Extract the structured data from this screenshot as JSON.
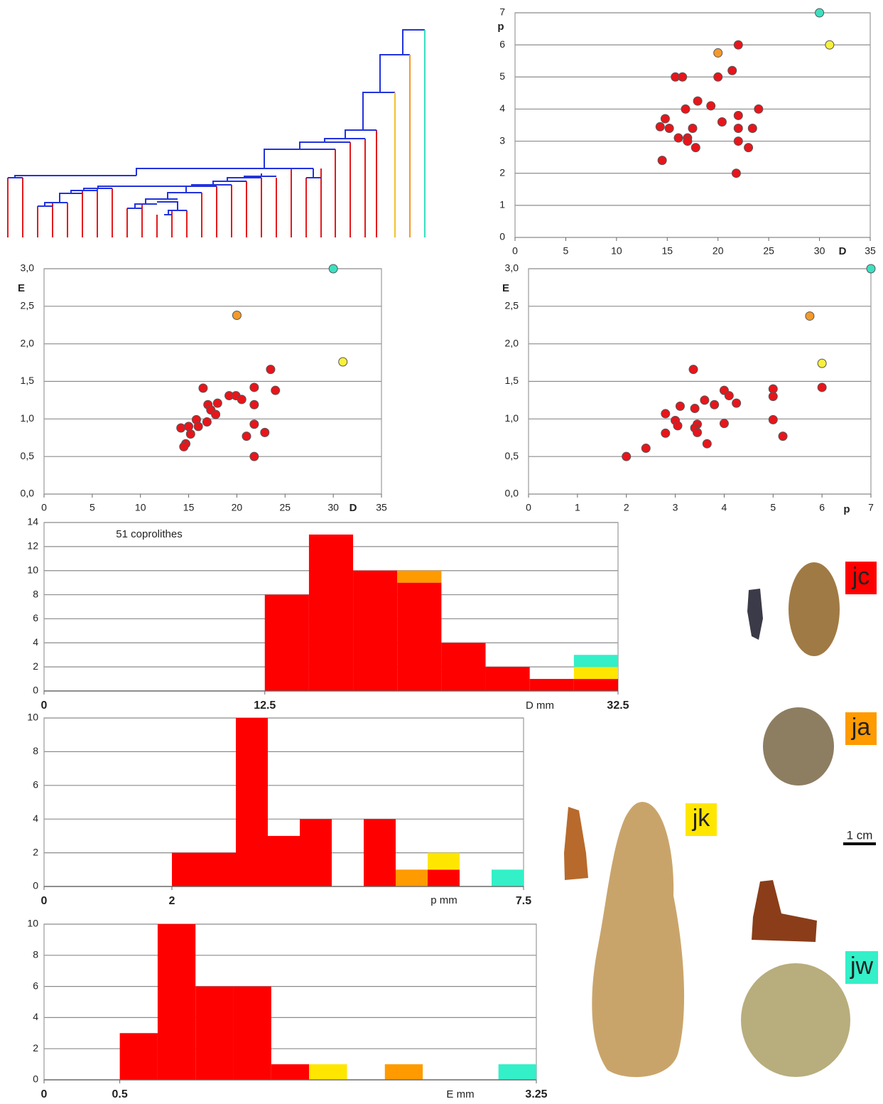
{
  "chart_data": [
    {
      "type": "scatter",
      "x_label": "D",
      "y_label": "p",
      "xlim": [
        0,
        35
      ],
      "xticks": [
        0,
        5,
        10,
        15,
        20,
        25,
        30,
        35
      ],
      "ylim": [
        0,
        7
      ],
      "yticks": [
        0,
        1,
        2,
        3,
        4,
        5,
        6,
        7
      ],
      "grid": true,
      "series": [
        {
          "color": "#e8151b",
          "x": [
            22,
            21.4,
            20,
            15.8,
            16.5,
            24,
            18,
            19.3,
            16.8,
            22,
            20.4,
            14.8,
            14.3,
            15.2,
            17.5,
            22,
            23.4,
            16.1,
            17,
            17,
            22,
            23,
            17.8,
            14.5,
            21.8
          ],
          "y": [
            6.0,
            5.2,
            5.0,
            5.0,
            5.0,
            4.0,
            4.25,
            4.1,
            4.0,
            3.8,
            3.6,
            3.7,
            3.45,
            3.4,
            3.4,
            3.4,
            3.4,
            3.1,
            3.1,
            3.0,
            3.0,
            2.8,
            2.8,
            2.4,
            2.0
          ]
        },
        {
          "color": "#f39a2b",
          "x": [
            20
          ],
          "y": [
            5.75
          ]
        },
        {
          "color": "#f7f03c",
          "x": [
            31
          ],
          "y": [
            6.0
          ]
        },
        {
          "color": "#3ce0c0",
          "x": [
            30
          ],
          "y": [
            7.0
          ]
        }
      ]
    },
    {
      "type": "scatter",
      "x_label": "D",
      "y_label": "E",
      "xlim": [
        0,
        35
      ],
      "xticks": [
        0,
        5,
        10,
        15,
        20,
        25,
        30,
        35
      ],
      "ylim": [
        0,
        3
      ],
      "yticks": [
        {
          "value": 0,
          "label": "0,0"
        },
        {
          "value": 0.5,
          "label": "0,5"
        },
        {
          "value": 1,
          "label": "1,0"
        },
        {
          "value": 1.5,
          "label": "1,5"
        },
        {
          "value": 2,
          "label": "2,0"
        },
        {
          "value": 2.5,
          "label": "2,5"
        },
        {
          "value": 3,
          "label": "3,0"
        }
      ],
      "grid": true,
      "series": [
        {
          "color": "#e8151b",
          "x": [
            23.5,
            16.5,
            21.8,
            24,
            19.2,
            19.9,
            20.5,
            17,
            18,
            21.8,
            17.3,
            17.8,
            16.9,
            15.8,
            16,
            14.2,
            15,
            15.2,
            21.8,
            22.9,
            21,
            14.7,
            14.5,
            21.8
          ],
          "y": [
            1.66,
            1.41,
            1.42,
            1.38,
            1.31,
            1.31,
            1.26,
            1.19,
            1.21,
            1.19,
            1.12,
            1.06,
            0.96,
            0.99,
            0.9,
            0.88,
            0.9,
            0.8,
            0.93,
            0.82,
            0.77,
            0.67,
            0.63,
            0.5
          ]
        },
        {
          "color": "#f39a2b",
          "x": [
            20
          ],
          "y": [
            2.38
          ]
        },
        {
          "color": "#f7f03c",
          "x": [
            31
          ],
          "y": [
            1.76
          ]
        },
        {
          "color": "#3ce0c0",
          "x": [
            30
          ],
          "y": [
            3.0
          ]
        }
      ]
    },
    {
      "type": "scatter",
      "x_label": "p",
      "y_label": "E",
      "xlim": [
        0,
        7
      ],
      "xticks": [
        0,
        1,
        2,
        3,
        4,
        5,
        6,
        7
      ],
      "ylim": [
        0,
        3
      ],
      "yticks": [
        {
          "value": 0,
          "label": "0,0"
        },
        {
          "value": 0.5,
          "label": "0,5"
        },
        {
          "value": 1,
          "label": "1,0"
        },
        {
          "value": 1.5,
          "label": "1,5"
        },
        {
          "value": 2,
          "label": "2,0"
        },
        {
          "value": 2.5,
          "label": "2,5"
        },
        {
          "value": 3,
          "label": "3,0"
        }
      ],
      "grid": true,
      "series": [
        {
          "color": "#e8151b",
          "x": [
            6,
            3.37,
            5,
            5,
            4,
            4.1,
            3.6,
            3.8,
            4.25,
            3.1,
            3.4,
            2.8,
            3,
            5,
            4,
            3.45,
            3.05,
            3.4,
            3.45,
            2.8,
            5.2,
            3.65,
            2.4,
            2.0
          ],
          "y": [
            1.42,
            1.66,
            1.4,
            1.3,
            1.38,
            1.31,
            1.25,
            1.19,
            1.21,
            1.17,
            1.14,
            1.07,
            0.98,
            0.99,
            0.94,
            0.93,
            0.91,
            0.88,
            0.82,
            0.81,
            0.77,
            0.67,
            0.61,
            0.5
          ]
        },
        {
          "color": "#f39a2b",
          "x": [
            5.75
          ],
          "y": [
            2.37
          ]
        },
        {
          "color": "#f7f03c",
          "x": [
            6
          ],
          "y": [
            1.74
          ]
        },
        {
          "color": "#3ce0c0",
          "x": [
            7
          ],
          "y": [
            3.0
          ]
        }
      ]
    },
    {
      "type": "histogram",
      "x_label": "D mm",
      "annotation": "51 coprolithes",
      "xlim": [
        0,
        32.5
      ],
      "xticks": [
        0,
        12.5,
        32.5
      ],
      "ylim": [
        0,
        14
      ],
      "yticks": [
        0,
        2,
        4,
        6,
        8,
        10,
        12,
        14
      ],
      "grid": true,
      "bins": [
        0,
        2.5,
        5,
        7.5,
        10,
        12.5,
        15,
        17.5,
        20,
        22.5,
        25,
        27.5,
        30,
        32.5
      ],
      "series": [
        {
          "color": "#ff0000",
          "values": [
            0,
            0,
            0,
            0,
            0,
            8,
            13,
            10,
            9,
            4,
            2,
            1,
            1
          ]
        },
        {
          "color": "#ff9a00",
          "values": [
            0,
            0,
            0,
            0,
            0,
            0,
            0,
            0,
            1,
            0,
            0,
            0,
            0
          ]
        },
        {
          "color": "#ffe600",
          "values": [
            0,
            0,
            0,
            0,
            0,
            0,
            0,
            0,
            0,
            0,
            0,
            0,
            1
          ]
        },
        {
          "color": "#33f0c8",
          "values": [
            0,
            0,
            0,
            0,
            0,
            0,
            0,
            0,
            0,
            0,
            0,
            0,
            1
          ]
        }
      ]
    },
    {
      "type": "histogram",
      "x_label": "p mm",
      "xlim": [
        0,
        7.5
      ],
      "xticks": [
        0,
        2,
        7.5
      ],
      "ylim": [
        0,
        10
      ],
      "yticks": [
        0,
        2,
        4,
        6,
        8,
        10
      ],
      "grid": true,
      "bins": [
        0,
        0.5,
        1,
        1.5,
        2,
        2.5,
        3,
        3.5,
        4,
        4.5,
        5,
        5.5,
        6,
        6.5,
        7,
        7.5
      ],
      "series": [
        {
          "color": "#ff0000",
          "values": [
            0,
            0,
            0,
            0,
            2,
            2,
            10,
            3,
            4,
            0,
            4,
            0,
            1,
            0,
            0
          ]
        },
        {
          "color": "#ff9a00",
          "values": [
            0,
            0,
            0,
            0,
            0,
            0,
            0,
            0,
            0,
            0,
            0,
            1,
            0,
            0,
            0
          ]
        },
        {
          "color": "#ffe600",
          "values": [
            0,
            0,
            0,
            0,
            0,
            0,
            0,
            0,
            0,
            0,
            0,
            0,
            1,
            0,
            0
          ]
        },
        {
          "color": "#33f0c8",
          "values": [
            0,
            0,
            0,
            0,
            0,
            0,
            0,
            0,
            0,
            0,
            0,
            0,
            0,
            0,
            1
          ]
        }
      ]
    },
    {
      "type": "histogram",
      "x_label": "E mm",
      "xlim": [
        0,
        3.25
      ],
      "xticks": [
        0,
        0.5,
        3.25
      ],
      "ylim": [
        0,
        10
      ],
      "yticks": [
        0,
        2,
        4,
        6,
        8,
        10
      ],
      "grid": true,
      "bins": [
        0,
        0.25,
        0.5,
        0.75,
        1,
        1.25,
        1.5,
        1.75,
        2,
        2.25,
        2.5,
        2.75,
        3,
        3.25
      ],
      "series": [
        {
          "color": "#ff0000",
          "values": [
            0,
            0,
            3,
            10,
            6,
            6,
            1,
            0,
            0,
            0,
            0,
            0,
            0
          ]
        },
        {
          "color": "#ffe600",
          "values": [
            0,
            0,
            0,
            0,
            0,
            0,
            0,
            1,
            0,
            0,
            0,
            0,
            0
          ]
        },
        {
          "color": "#ff9a00",
          "values": [
            0,
            0,
            0,
            0,
            0,
            0,
            0,
            0,
            0,
            1,
            0,
            0,
            0
          ]
        },
        {
          "color": "#33f0c8",
          "values": [
            0,
            0,
            0,
            0,
            0,
            0,
            0,
            0,
            0,
            0,
            0,
            0,
            1
          ]
        }
      ]
    }
  ],
  "specimens": [
    "jc",
    "ja",
    "jk",
    "jw"
  ],
  "scale_bar": "1 cm"
}
